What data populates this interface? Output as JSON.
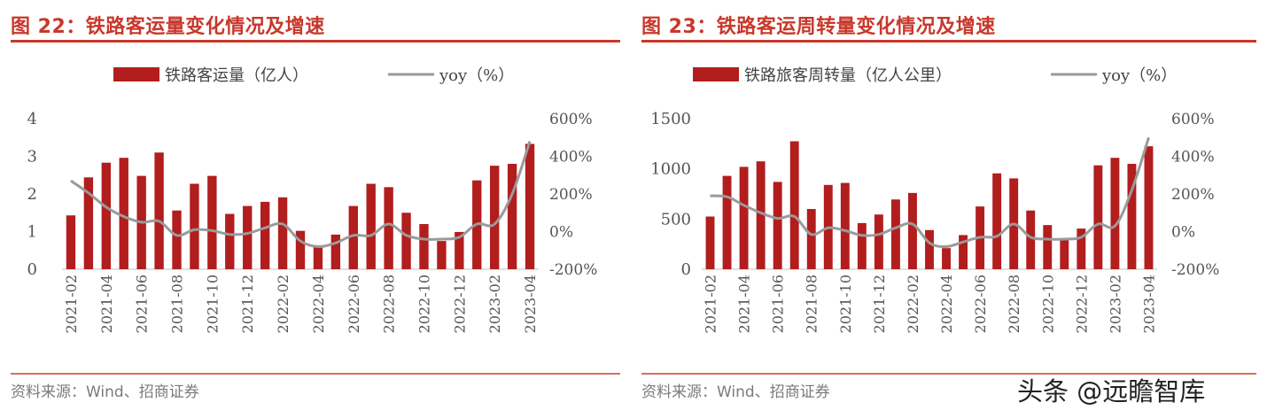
{
  "figures": [
    {
      "title": "图 22：铁路客运量变化情况及增速",
      "source": "资料来源：Wind、招商证券"
    },
    {
      "title": "图 23：铁路客运周转量变化情况及增速",
      "source": "资料来源：Wind、招商证券"
    }
  ],
  "watermark": "头条 @远瞻智库",
  "colors": {
    "bar": "#b21d1d",
    "line": "#9a9a9a",
    "title": "#c8382b"
  },
  "chart_data": [
    {
      "type": "bar",
      "categories": [
        "2021-02",
        "2021-03",
        "2021-04",
        "2021-05",
        "2021-06",
        "2021-07",
        "2021-08",
        "2021-09",
        "2021-10",
        "2021-11",
        "2021-12",
        "2022-01",
        "2022-02",
        "2022-03",
        "2022-04",
        "2022-05",
        "2022-06",
        "2022-07",
        "2022-08",
        "2022-09",
        "2022-10",
        "2022-11",
        "2022-12",
        "2023-01",
        "2023-02",
        "2023-03",
        "2023-04"
      ],
      "x_tick_labels": [
        "2021-02",
        "2021-04",
        "2021-06",
        "2021-08",
        "2021-10",
        "2021-12",
        "2022-02",
        "2022-04",
        "2022-06",
        "2022-08",
        "2022-10",
        "2022-12",
        "2023-02",
        "2023-04"
      ],
      "series": [
        {
          "name": "铁路客运量（亿人）",
          "type": "bar",
          "axis": "left",
          "values": [
            1.43,
            2.44,
            2.83,
            2.96,
            2.48,
            3.1,
            1.56,
            2.27,
            2.48,
            1.47,
            1.68,
            1.79,
            1.91,
            1.02,
            0.58,
            0.92,
            1.68,
            2.27,
            2.18,
            1.5,
            1.2,
            0.75,
            0.99,
            2.36,
            2.75,
            2.8,
            3.33
          ]
        },
        {
          "name": "yoy（%）",
          "type": "line",
          "axis": "right",
          "values": [
            270,
            205,
            130,
            80,
            50,
            55,
            -20,
            10,
            5,
            -15,
            -10,
            20,
            40,
            -50,
            -80,
            -60,
            -20,
            -20,
            40,
            -20,
            -40,
            -40,
            -30,
            40,
            40,
            200,
            480
          ]
        }
      ],
      "y_left": {
        "ticks": [
          "0",
          "1",
          "2",
          "3",
          "4"
        ],
        "range": [
          0,
          4
        ]
      },
      "y_right": {
        "ticks": [
          "-200%",
          "0%",
          "200%",
          "400%",
          "600%"
        ],
        "range": [
          -200,
          600
        ]
      },
      "grid": false,
      "legend_position": "top"
    },
    {
      "type": "bar",
      "categories": [
        "2021-02",
        "2021-03",
        "2021-04",
        "2021-05",
        "2021-06",
        "2021-07",
        "2021-08",
        "2021-09",
        "2021-10",
        "2021-11",
        "2021-12",
        "2022-01",
        "2022-02",
        "2022-03",
        "2022-04",
        "2022-05",
        "2022-06",
        "2022-07",
        "2022-08",
        "2022-09",
        "2022-10",
        "2022-11",
        "2022-12",
        "2023-01",
        "2023-02",
        "2023-03",
        "2023-04"
      ],
      "x_tick_labels": [
        "2021-02",
        "2021-04",
        "2021-06",
        "2021-08",
        "2021-10",
        "2021-12",
        "2022-02",
        "2022-04",
        "2022-06",
        "2022-08",
        "2022-10",
        "2022-12",
        "2023-02",
        "2023-04"
      ],
      "series": [
        {
          "name": "铁路旅客周转量（亿人公里）",
          "type": "bar",
          "axis": "left",
          "values": [
            525,
            930,
            1020,
            1075,
            870,
            1275,
            600,
            840,
            860,
            460,
            545,
            695,
            760,
            390,
            210,
            340,
            625,
            955,
            905,
            585,
            440,
            290,
            405,
            1035,
            1110,
            1050,
            1225
          ]
        },
        {
          "name": "yoy（%）",
          "type": "line",
          "axis": "right",
          "values": [
            190,
            185,
            140,
            100,
            70,
            80,
            -15,
            20,
            5,
            -20,
            -15,
            20,
            40,
            -60,
            -80,
            -55,
            -30,
            -25,
            40,
            -30,
            -40,
            -40,
            -30,
            40,
            30,
            220,
            500
          ]
        }
      ],
      "y_left": {
        "ticks": [
          "0",
          "500",
          "1000",
          "1500"
        ],
        "range": [
          0,
          1500
        ]
      },
      "y_right": {
        "ticks": [
          "-200%",
          "0%",
          "200%",
          "400%",
          "600%"
        ],
        "range": [
          -200,
          600
        ]
      },
      "grid": false,
      "legend_position": "top"
    }
  ]
}
